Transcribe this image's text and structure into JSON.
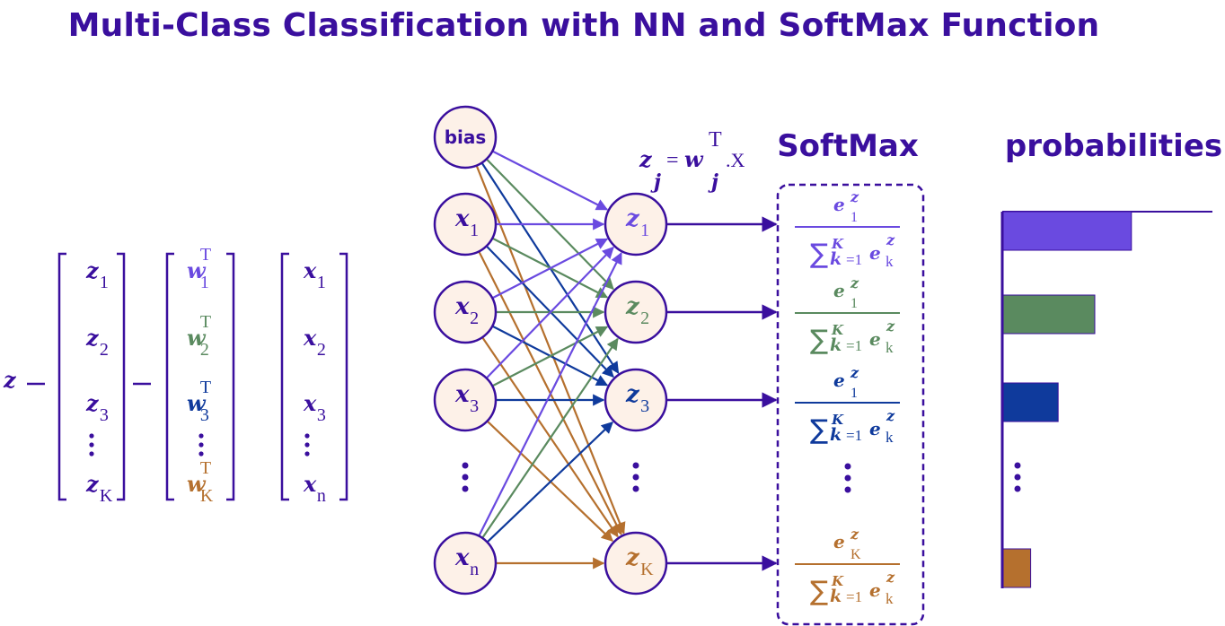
{
  "title": "Multi-Class Classification with NN and SoftMax Function",
  "headers": {
    "softmax": "SoftMax",
    "probabilities": "probabilities"
  },
  "colors": {
    "navy": "#3a0f9e",
    "purple": "#6a4ae0",
    "green": "#5a8a5f",
    "blue": "#0f3a9c",
    "orange": "#b5702e",
    "node_fill": "#fdf1e8"
  },
  "equation": {
    "lhs": "z",
    "eq": "=",
    "rhs": ".X",
    "sub_j": "j",
    "w": "w",
    "sup_T": "T"
  },
  "vector_eq": {
    "lhs": "z",
    "op": "=",
    "z": [
      {
        "b": "z",
        "s": "1"
      },
      {
        "b": "z",
        "s": "2"
      },
      {
        "b": "z",
        "s": "3"
      },
      {
        "b": "z",
        "s": "K"
      }
    ],
    "w": [
      {
        "b": "w",
        "s": "1",
        "sup": "T"
      },
      {
        "b": "w",
        "s": "2",
        "sup": "T"
      },
      {
        "b": "w",
        "s": "3",
        "sup": "T"
      },
      {
        "b": "w",
        "s": "K",
        "sup": "T"
      }
    ],
    "x": [
      {
        "b": "x",
        "s": "1"
      },
      {
        "b": "x",
        "s": "2"
      },
      {
        "b": "x",
        "s": "3"
      },
      {
        "b": "x",
        "s": "n"
      }
    ]
  },
  "input_nodes": [
    {
      "label": "bias"
    },
    {
      "b": "x",
      "s": "1"
    },
    {
      "b": "x",
      "s": "2"
    },
    {
      "b": "x",
      "s": "3"
    },
    {
      "b": "x",
      "s": "n"
    }
  ],
  "output_nodes": [
    {
      "b": "z",
      "s": "1"
    },
    {
      "b": "z",
      "s": "2"
    },
    {
      "b": "z",
      "s": "3"
    },
    {
      "b": "z",
      "s": "K"
    }
  ],
  "softmax_terms": [
    {
      "num_e": "e",
      "num_z": "z",
      "num_sub": "1",
      "den_sum": "∑",
      "den_sup": "K",
      "den_k": "k",
      "den_eq1": "=1",
      "den_e": "e",
      "den_z": "z",
      "den_sub": "k"
    },
    {
      "num_e": "e",
      "num_z": "z",
      "num_sub": "1",
      "den_sum": "∑",
      "den_sup": "K",
      "den_k": "k",
      "den_eq1": "=1",
      "den_e": "e",
      "den_z": "z",
      "den_sub": "k"
    },
    {
      "num_e": "e",
      "num_z": "z",
      "num_sub": "1",
      "den_sum": "∑",
      "den_sup": "K",
      "den_k": "k",
      "den_eq1": "=1",
      "den_e": "e",
      "den_z": "z",
      "den_sub": "k"
    },
    {
      "num_e": "e",
      "num_z": "z",
      "num_sub": "K",
      "den_sum": "∑",
      "den_sup": "K",
      "den_k": "k",
      "den_eq1": "=1",
      "den_e": "e",
      "den_z": "z",
      "den_sub": "k"
    }
  ],
  "probabilities": [
    {
      "value": 0.42,
      "color": "purple"
    },
    {
      "value": 0.3,
      "color": "green"
    },
    {
      "value": 0.18,
      "color": "blue"
    },
    {
      "value": 0.09,
      "color": "orange"
    }
  ]
}
